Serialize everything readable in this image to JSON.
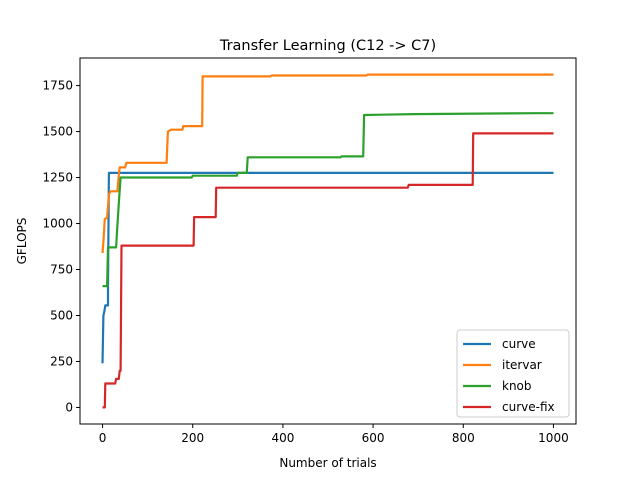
{
  "chart_data": {
    "type": "line",
    "title": "Transfer Learning (C12 -> C7)",
    "xlabel": "Number of trials",
    "ylabel": "GFLOPS",
    "xlim": [
      -50,
      1050
    ],
    "ylim": [
      -90,
      1900
    ],
    "x_ticks": [
      0,
      200,
      400,
      600,
      800,
      1000
    ],
    "y_ticks": [
      0,
      250,
      500,
      750,
      1000,
      1250,
      1500,
      1750
    ],
    "grid": false,
    "legend_position": "bottom-right",
    "series": [
      {
        "name": "curve",
        "color": "#1f77b4",
        "points": [
          [
            0,
            240
          ],
          [
            2,
            500
          ],
          [
            4,
            520
          ],
          [
            6,
            555
          ],
          [
            12,
            555
          ],
          [
            12,
            660
          ],
          [
            14,
            1275
          ],
          [
            1000,
            1275
          ]
        ]
      },
      {
        "name": "itervar",
        "color": "#ff7f0e",
        "points": [
          [
            0,
            840
          ],
          [
            2,
            900
          ],
          [
            5,
            1025
          ],
          [
            10,
            1030
          ],
          [
            14,
            1160
          ],
          [
            18,
            1175
          ],
          [
            33,
            1175
          ],
          [
            36,
            1265
          ],
          [
            38,
            1305
          ],
          [
            50,
            1305
          ],
          [
            53,
            1330
          ],
          [
            142,
            1330
          ],
          [
            145,
            1500
          ],
          [
            152,
            1510
          ],
          [
            177,
            1510
          ],
          [
            179,
            1530
          ],
          [
            221,
            1530
          ],
          [
            222,
            1800
          ],
          [
            372,
            1800
          ],
          [
            375,
            1805
          ],
          [
            585,
            1805
          ],
          [
            588,
            1810
          ],
          [
            1000,
            1810
          ]
        ]
      },
      {
        "name": "knob",
        "color": "#2ca02c",
        "points": [
          [
            0,
            660
          ],
          [
            10,
            660
          ],
          [
            12,
            870
          ],
          [
            30,
            870
          ],
          [
            33,
            990
          ],
          [
            36,
            1110
          ],
          [
            40,
            1250
          ],
          [
            198,
            1250
          ],
          [
            200,
            1260
          ],
          [
            298,
            1260
          ],
          [
            300,
            1275
          ],
          [
            320,
            1275
          ],
          [
            322,
            1360
          ],
          [
            528,
            1360
          ],
          [
            530,
            1365
          ],
          [
            578,
            1365
          ],
          [
            580,
            1590
          ],
          [
            690,
            1595
          ],
          [
            960,
            1600
          ],
          [
            1000,
            1600
          ]
        ]
      },
      {
        "name": "curve-fix",
        "color": "#d62728",
        "points": [
          [
            0,
            0
          ],
          [
            5,
            0
          ],
          [
            6,
            130
          ],
          [
            28,
            130
          ],
          [
            30,
            155
          ],
          [
            36,
            155
          ],
          [
            38,
            200
          ],
          [
            40,
            200
          ],
          [
            42,
            880
          ],
          [
            202,
            880
          ],
          [
            203,
            1035
          ],
          [
            251,
            1035
          ],
          [
            252,
            1195
          ],
          [
            677,
            1195
          ],
          [
            679,
            1210
          ],
          [
            821,
            1210
          ],
          [
            822,
            1490
          ],
          [
            1000,
            1490
          ]
        ]
      }
    ]
  }
}
